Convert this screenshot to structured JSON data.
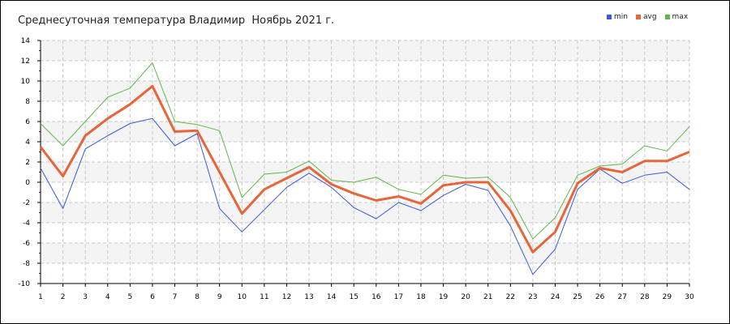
{
  "chart_data": {
    "type": "line",
    "title": "Среднесуточная температура Владимир  Ноябрь 2021 г.",
    "xlabel": "",
    "ylabel": "",
    "x": [
      1,
      2,
      3,
      4,
      5,
      6,
      7,
      8,
      9,
      10,
      11,
      12,
      13,
      14,
      15,
      16,
      17,
      18,
      19,
      20,
      21,
      22,
      23,
      24,
      25,
      26,
      27,
      28,
      29,
      30
    ],
    "ylim": [
      -10,
      14
    ],
    "yticks": [
      -10,
      -8,
      -6,
      -4,
      -2,
      0,
      2,
      4,
      6,
      8,
      10,
      12,
      14
    ],
    "grid": true,
    "legend_position": "top-right",
    "series": [
      {
        "name": "min",
        "color": "#3a5ad9",
        "values": [
          1.4,
          -2.6,
          3.3,
          4.6,
          5.8,
          6.3,
          3.6,
          4.8,
          -2.6,
          -4.9,
          -2.7,
          -0.5,
          0.9,
          -0.5,
          -2.5,
          -3.6,
          -2.0,
          -2.8,
          -1.3,
          -0.2,
          -0.8,
          -4.3,
          -9.1,
          -6.6,
          -0.7,
          1.3,
          -0.1,
          0.7,
          1.0,
          -0.7
        ]
      },
      {
        "name": "avg",
        "color": "#e8643a",
        "values": [
          3.5,
          0.6,
          4.6,
          6.3,
          7.7,
          9.5,
          5.0,
          5.1,
          1.0,
          -3.1,
          -0.7,
          0.4,
          1.5,
          -0.2,
          -1.1,
          -1.8,
          -1.4,
          -2.1,
          -0.3,
          0.0,
          0.0,
          -2.8,
          -6.9,
          -4.9,
          -0.1,
          1.4,
          1.0,
          2.1,
          2.1,
          3.0
        ]
      },
      {
        "name": "max",
        "color": "#5fb84a",
        "values": [
          5.8,
          3.6,
          6.0,
          8.4,
          9.3,
          11.8,
          6.0,
          5.7,
          5.1,
          -1.5,
          0.8,
          1.0,
          2.1,
          0.2,
          0.0,
          0.5,
          -0.7,
          -1.2,
          0.7,
          0.4,
          0.5,
          -1.5,
          -5.6,
          -3.5,
          0.7,
          1.6,
          1.8,
          3.6,
          3.1,
          5.5
        ]
      }
    ]
  }
}
